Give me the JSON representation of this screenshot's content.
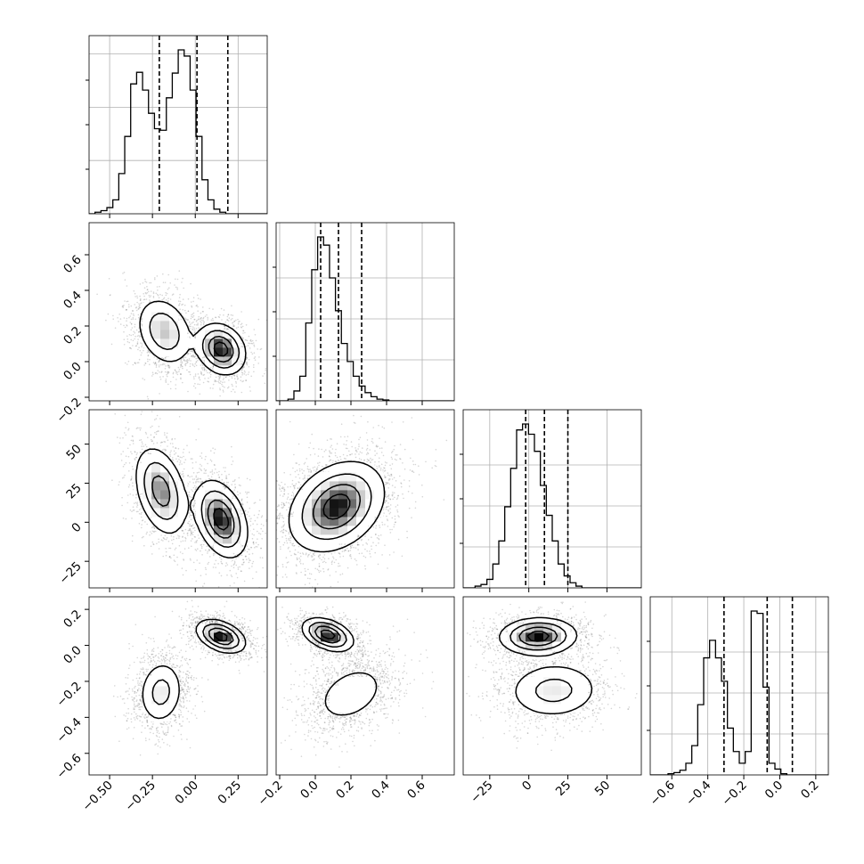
{
  "chart_data": {
    "type": "corner",
    "parameters": [
      "p0",
      "p1",
      "p2",
      "p3"
    ],
    "axes": {
      "p0": {
        "range": [
          -0.62,
          0.42
        ],
        "ticks": [
          -0.5,
          -0.25,
          0.0,
          0.25
        ],
        "tick_labels": [
          "−0.50",
          "−0.25",
          "0.00",
          "0.25"
        ]
      },
      "p1": {
        "range": [
          -0.22,
          0.78
        ],
        "ticks": [
          -0.2,
          0.0,
          0.2,
          0.4,
          0.6
        ],
        "tick_labels": [
          "−0.2",
          "0.0",
          "0.2",
          "0.4",
          "0.6"
        ]
      },
      "p2": {
        "range": [
          -42,
          72
        ],
        "ticks": [
          -25,
          0,
          25,
          50
        ],
        "tick_labels": [
          "−25",
          "0",
          "25",
          "50"
        ]
      },
      "p3": {
        "range": [
          -0.72,
          0.27
        ],
        "ticks": [
          -0.6,
          -0.4,
          -0.2,
          0.0,
          0.2
        ],
        "tick_labels": [
          "−0.6",
          "−0.4",
          "−0.2",
          "0.0",
          "0.2"
        ]
      }
    },
    "quantiles": {
      "p0": [
        -0.21,
        0.01,
        0.19
      ],
      "p1": [
        0.03,
        0.13,
        0.26
      ],
      "p2": [
        -2,
        10,
        25
      ],
      "p3": [
        -0.31,
        -0.07,
        0.07
      ]
    },
    "histograms": {
      "p0": {
        "bin_start": -0.62,
        "bin_width": 0.0347,
        "counts": [
          0,
          2,
          4,
          8,
          18,
          52,
          100,
          168,
          183,
          160,
          130,
          110,
          108,
          150,
          182,
          212,
          204,
          160,
          100,
          44,
          18,
          6,
          2,
          0,
          0,
          0,
          0,
          0,
          0,
          0
        ]
      },
      "p1": {
        "bin_start": -0.22,
        "bin_width": 0.0333,
        "counts": [
          0,
          0,
          2,
          12,
          30,
          95,
          160,
          200,
          190,
          150,
          110,
          70,
          48,
          30,
          18,
          10,
          5,
          2,
          1,
          0,
          0,
          0,
          0,
          0,
          0,
          0,
          0,
          0,
          0,
          0
        ]
      },
      "p2": {
        "bin_start": -42,
        "bin_width": 3.8,
        "counts": [
          0,
          0,
          2,
          4,
          10,
          28,
          55,
          95,
          140,
          185,
          192,
          180,
          160,
          120,
          85,
          55,
          28,
          14,
          6,
          2,
          0,
          0,
          0,
          0,
          0,
          0,
          0,
          0,
          0,
          0
        ]
      },
      "p3": {
        "bin_start": -0.72,
        "bin_width": 0.033,
        "counts": [
          0,
          0,
          0,
          1,
          2,
          4,
          10,
          25,
          60,
          100,
          115,
          100,
          80,
          40,
          20,
          10,
          20,
          140,
          138,
          75,
          10,
          5,
          1,
          0,
          0,
          0,
          0,
          0,
          0,
          0
        ]
      }
    },
    "pairs": [
      {
        "x": "p0",
        "y": "p1",
        "modes": [
          {
            "cx": -0.18,
            "cy": 0.17,
            "sx": 0.08,
            "sy": 0.095,
            "rho": -0.25,
            "w": 0.47
          },
          {
            "cx": 0.15,
            "cy": 0.07,
            "sx": 0.07,
            "sy": 0.07,
            "rho": -0.2,
            "w": 0.53
          }
        ]
      },
      {
        "x": "p0",
        "y": "p2",
        "modes": [
          {
            "cx": -0.2,
            "cy": 20,
            "sx": 0.075,
            "sy": 14,
            "rho": -0.35,
            "w": 0.47
          },
          {
            "cx": 0.15,
            "cy": 2,
            "sx": 0.075,
            "sy": 12,
            "rho": -0.35,
            "w": 0.53
          }
        ]
      },
      {
        "x": "p1",
        "y": "p2",
        "modes": [
          {
            "cx": 0.12,
            "cy": 10,
            "sx": 0.13,
            "sy": 14,
            "rho": 0.3,
            "w": 1.0
          }
        ]
      },
      {
        "x": "p0",
        "y": "p3",
        "modes": [
          {
            "cx": -0.2,
            "cy": -0.26,
            "sx": 0.065,
            "sy": 0.09,
            "rho": 0.1,
            "w": 0.47
          },
          {
            "cx": 0.15,
            "cy": 0.05,
            "sx": 0.07,
            "sy": 0.045,
            "rho": -0.4,
            "w": 0.53
          }
        ]
      },
      {
        "x": "p1",
        "y": "p3",
        "modes": [
          {
            "cx": 0.07,
            "cy": 0.06,
            "sx": 0.07,
            "sy": 0.045,
            "rho": -0.4,
            "w": 0.53
          },
          {
            "cx": 0.2,
            "cy": -0.27,
            "sx": 0.11,
            "sy": 0.09,
            "rho": 0.35,
            "w": 0.47
          }
        ]
      },
      {
        "x": "p2",
        "y": "p3",
        "modes": [
          {
            "cx": 6,
            "cy": 0.05,
            "sx": 12,
            "sy": 0.05,
            "rho": 0.05,
            "w": 0.53
          },
          {
            "cx": 16,
            "cy": -0.25,
            "sx": 15,
            "sy": 0.08,
            "rho": 0.05,
            "w": 0.47
          }
        ]
      }
    ],
    "grid": true,
    "title": "",
    "legend": "none"
  }
}
